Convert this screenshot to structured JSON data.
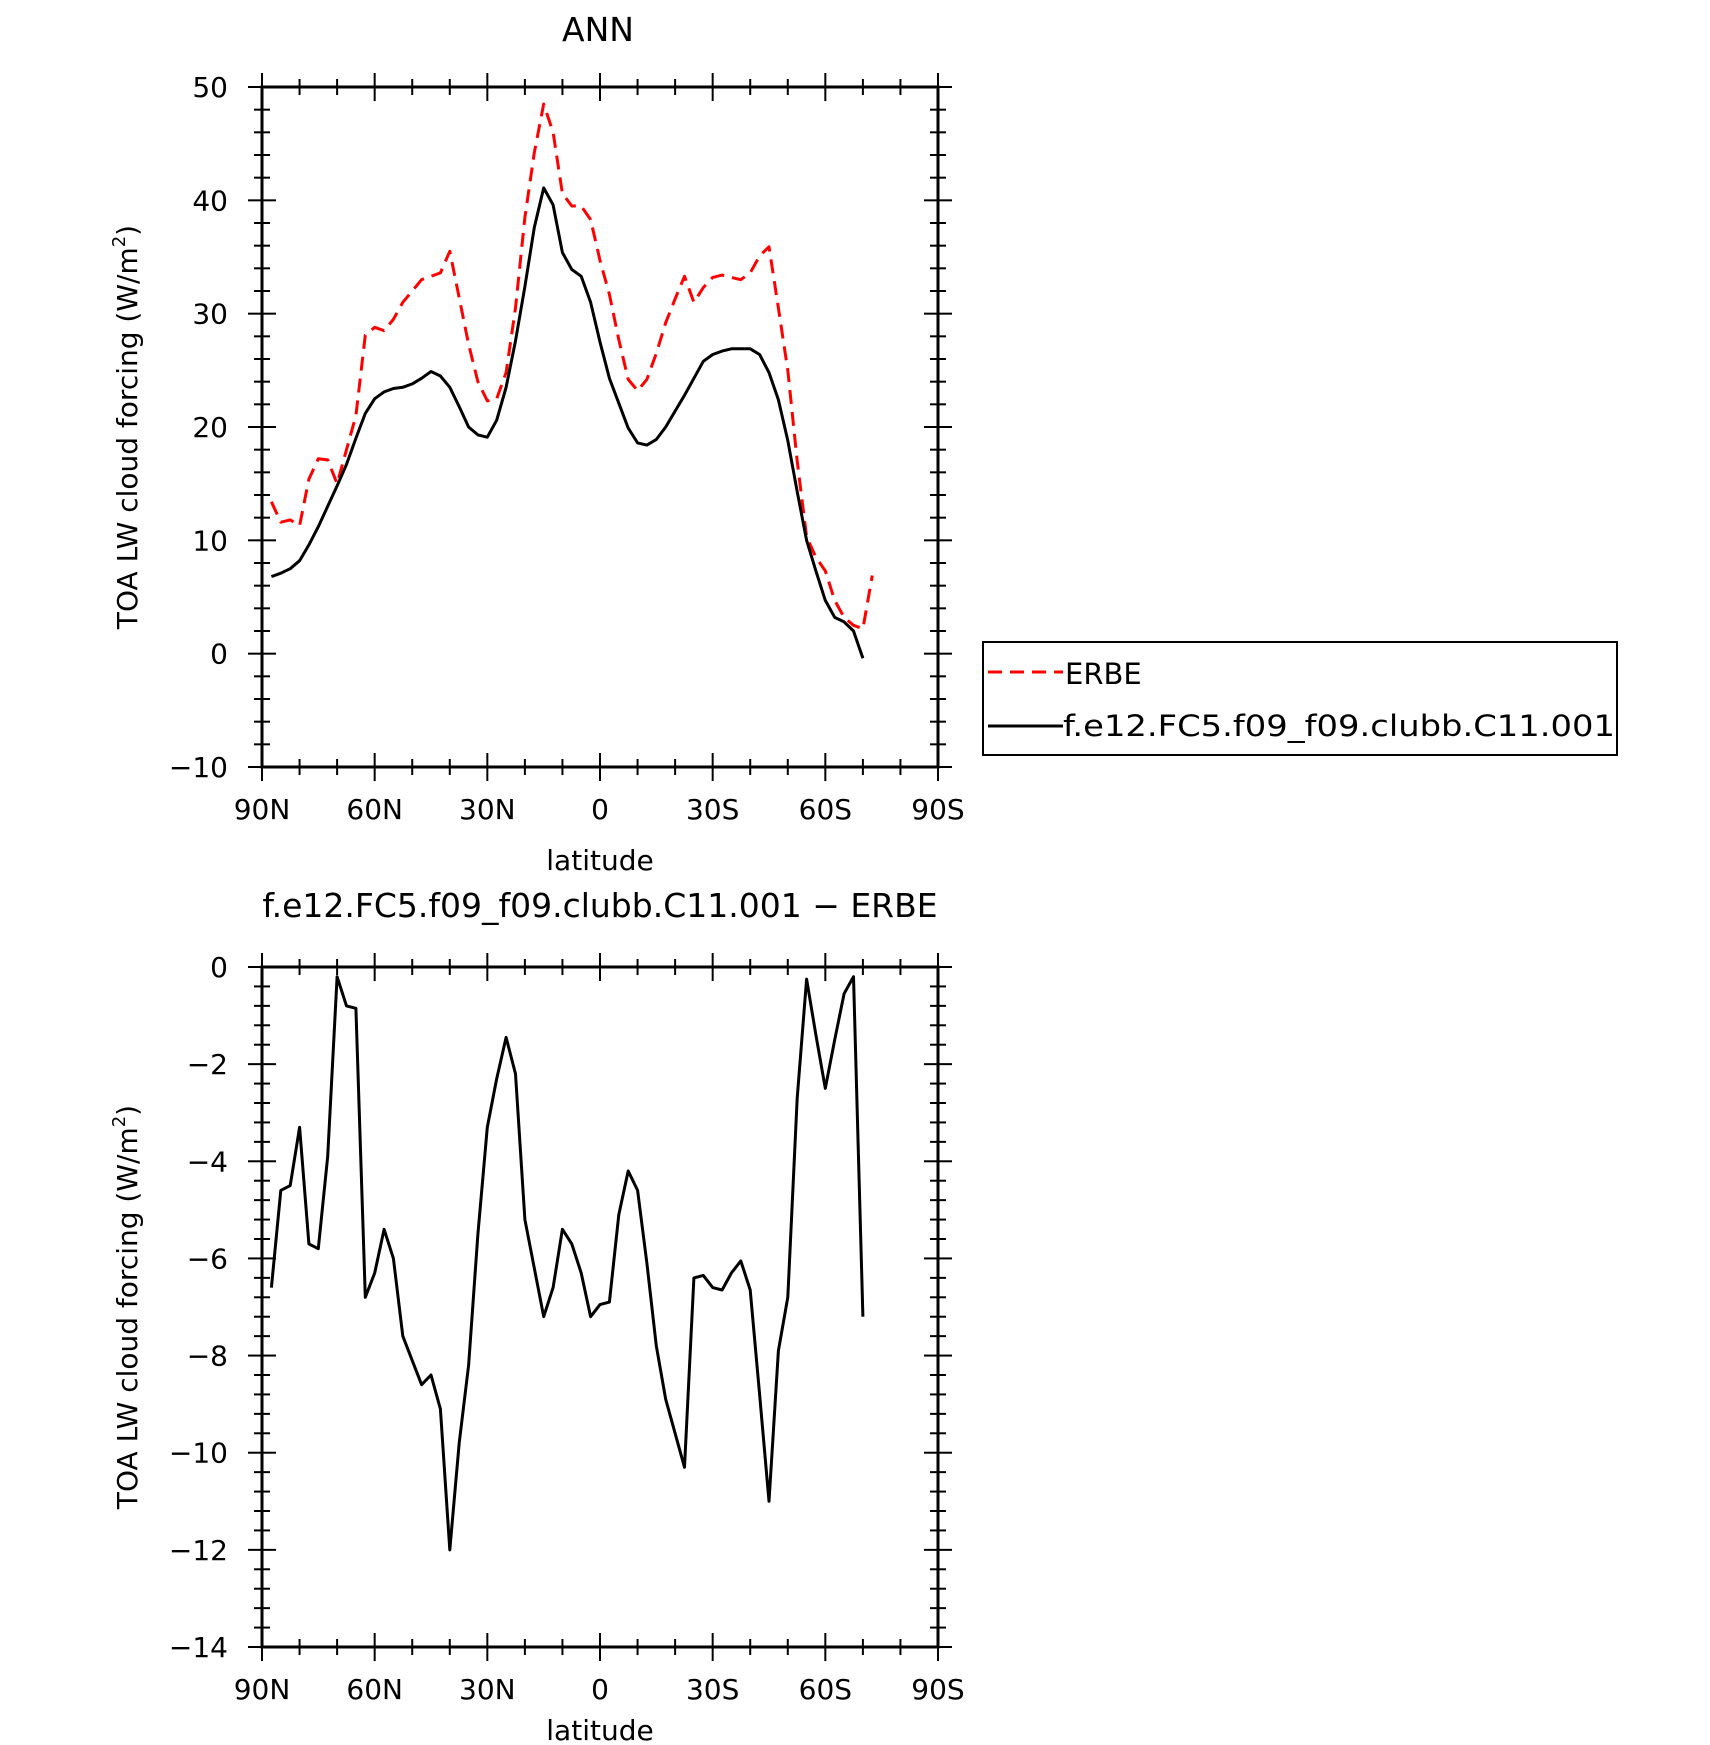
{
  "chart_data": [
    {
      "type": "line",
      "title": "ANN",
      "xlabel": "latitude",
      "ylabel": "TOA LW cloud forcing (W/m",
      "ylabel_sup": "2",
      "ylabel_close": ")",
      "xlim": [
        90,
        -90
      ],
      "ylim": [
        -10,
        50
      ],
      "xticks": [
        {
          "value": 90,
          "label": "90N"
        },
        {
          "value": 60,
          "label": "60N"
        },
        {
          "value": 30,
          "label": "30N"
        },
        {
          "value": 0,
          "label": "0"
        },
        {
          "value": -30,
          "label": "30S"
        },
        {
          "value": -60,
          "label": "60S"
        },
        {
          "value": -90,
          "label": "90S"
        }
      ],
      "yticks": [
        {
          "value": -10,
          "label": "−10"
        },
        {
          "value": 0,
          "label": "0"
        },
        {
          "value": 10,
          "label": "10"
        },
        {
          "value": 20,
          "label": "20"
        },
        {
          "value": 30,
          "label": "30"
        },
        {
          "value": 40,
          "label": "40"
        },
        {
          "value": 50,
          "label": "50"
        }
      ],
      "legend_position": "right",
      "series": [
        {
          "name": "ERBE",
          "color": "#ff0000",
          "style": "dashed",
          "points": [
            [
              87.5,
              13.4
            ],
            [
              85,
              11.6
            ],
            [
              82.5,
              11.8
            ],
            [
              80,
              11.3
            ],
            [
              77.5,
              15.4
            ],
            [
              75,
              17.2
            ],
            [
              72.5,
              17.1
            ],
            [
              70,
              15.0
            ],
            [
              67.5,
              18.0
            ],
            [
              65,
              21.0
            ],
            [
              62.5,
              28.1
            ],
            [
              60,
              28.8
            ],
            [
              57.5,
              28.5
            ],
            [
              55,
              29.5
            ],
            [
              52.5,
              31.0
            ],
            [
              50,
              32.0
            ],
            [
              47.5,
              33.0
            ],
            [
              45,
              33.3
            ],
            [
              42.5,
              33.6
            ],
            [
              40,
              35.5
            ],
            [
              37.5,
              31.4
            ],
            [
              35,
              27.3
            ],
            [
              32.5,
              24.0
            ],
            [
              30,
              22.3
            ],
            [
              27.5,
              22.5
            ],
            [
              25,
              24.8
            ],
            [
              22.5,
              30.5
            ],
            [
              20,
              38.5
            ],
            [
              17.5,
              44.2
            ],
            [
              15,
              48.5
            ],
            [
              12.5,
              46.0
            ],
            [
              10,
              40.6
            ],
            [
              7.5,
              39.5
            ],
            [
              5,
              39.5
            ],
            [
              2.5,
              38.3
            ],
            [
              0,
              34.7
            ],
            [
              -2.5,
              31.7
            ],
            [
              -5,
              27.7
            ],
            [
              -7.5,
              24.2
            ],
            [
              -10,
              23.2
            ],
            [
              -12.5,
              24.2
            ],
            [
              -15,
              26.5
            ],
            [
              -17.5,
              29.2
            ],
            [
              -20,
              31.3
            ],
            [
              -22.5,
              33.3
            ],
            [
              -25,
              31.0
            ],
            [
              -27.5,
              32.3
            ],
            [
              -30,
              33.2
            ],
            [
              -32.5,
              33.4
            ],
            [
              -35,
              33.2
            ],
            [
              -37.5,
              33.0
            ],
            [
              -40,
              33.6
            ],
            [
              -42.5,
              35.1
            ],
            [
              -45,
              35.9
            ],
            [
              -47.5,
              30.5
            ],
            [
              -50,
              25.0
            ],
            [
              -52.5,
              17.0
            ],
            [
              -55,
              10.3
            ],
            [
              -57.5,
              8.5
            ],
            [
              -60,
              7.3
            ],
            [
              -62.5,
              4.7
            ],
            [
              -65,
              3.2
            ],
            [
              -67.5,
              2.5
            ],
            [
              -70,
              2.2
            ],
            [
              -72.5,
              6.9
            ]
          ]
        },
        {
          "name": "f.e12.FC5.f09_f09.clubb.C11.001",
          "color": "#000000",
          "style": "solid",
          "points": [
            [
              87.5,
              6.8
            ],
            [
              85,
              7.1
            ],
            [
              82.5,
              7.5
            ],
            [
              80,
              8.2
            ],
            [
              77.5,
              9.6
            ],
            [
              75,
              11.2
            ],
            [
              72.5,
              13.0
            ],
            [
              70,
              14.8
            ],
            [
              67.5,
              16.7
            ],
            [
              65,
              19.0
            ],
            [
              62.5,
              21.2
            ],
            [
              60,
              22.5
            ],
            [
              57.5,
              23.1
            ],
            [
              55,
              23.4
            ],
            [
              52.5,
              23.5
            ],
            [
              50,
              23.8
            ],
            [
              47.5,
              24.3
            ],
            [
              45,
              24.9
            ],
            [
              42.5,
              24.5
            ],
            [
              40,
              23.5
            ],
            [
              37.5,
              21.8
            ],
            [
              35,
              20.0
            ],
            [
              32.5,
              19.3
            ],
            [
              30,
              19.1
            ],
            [
              27.5,
              20.6
            ],
            [
              25,
              23.5
            ],
            [
              22.5,
              27.6
            ],
            [
              20,
              32.4
            ],
            [
              17.5,
              37.6
            ],
            [
              15,
              41.1
            ],
            [
              12.5,
              39.6
            ],
            [
              10,
              35.4
            ],
            [
              7.5,
              33.9
            ],
            [
              5,
              33.3
            ],
            [
              2.5,
              31.0
            ],
            [
              0,
              27.5
            ],
            [
              -2.5,
              24.3
            ],
            [
              -5,
              22.1
            ],
            [
              -7.5,
              19.9
            ],
            [
              -10,
              18.6
            ],
            [
              -12.5,
              18.4
            ],
            [
              -15,
              18.9
            ],
            [
              -17.5,
              20.0
            ],
            [
              -20,
              21.4
            ],
            [
              -22.5,
              22.8
            ],
            [
              -25,
              24.3
            ],
            [
              -27.5,
              25.8
            ],
            [
              -30,
              26.4
            ],
            [
              -32.5,
              26.7
            ],
            [
              -35,
              26.9
            ],
            [
              -37.5,
              26.9
            ],
            [
              -40,
              26.9
            ],
            [
              -42.5,
              26.4
            ],
            [
              -45,
              24.8
            ],
            [
              -47.5,
              22.4
            ],
            [
              -50,
              18.8
            ],
            [
              -52.5,
              14.3
            ],
            [
              -55,
              10.0
            ],
            [
              -57.5,
              7.3
            ],
            [
              -60,
              4.7
            ],
            [
              -62.5,
              3.2
            ],
            [
              -65,
              2.8
            ],
            [
              -67.5,
              2.0
            ],
            [
              -70,
              -0.4
            ]
          ]
        }
      ]
    },
    {
      "type": "line",
      "title": "f.e12.FC5.f09_f09.clubb.C11.001 − ERBE",
      "xlabel": "latitude",
      "ylabel": "TOA LW cloud forcing (W/m",
      "ylabel_sup": "2",
      "ylabel_close": ")",
      "xlim": [
        90,
        -90
      ],
      "ylim": [
        -14,
        0
      ],
      "xticks": [
        {
          "value": 90,
          "label": "90N"
        },
        {
          "value": 60,
          "label": "60N"
        },
        {
          "value": 30,
          "label": "30N"
        },
        {
          "value": 0,
          "label": "0"
        },
        {
          "value": -30,
          "label": "30S"
        },
        {
          "value": -60,
          "label": "60S"
        },
        {
          "value": -90,
          "label": "90S"
        }
      ],
      "yticks": [
        {
          "value": -14,
          "label": "−14"
        },
        {
          "value": -12,
          "label": "−12"
        },
        {
          "value": -10,
          "label": "−10"
        },
        {
          "value": -8,
          "label": "−8"
        },
        {
          "value": -6,
          "label": "−6"
        },
        {
          "value": -4,
          "label": "−4"
        },
        {
          "value": -2,
          "label": "−2"
        },
        {
          "value": 0,
          "label": "0"
        }
      ],
      "series": [
        {
          "color": "#000000",
          "style": "solid",
          "points": [
            [
              87.5,
              -6.6
            ],
            [
              85,
              -4.6
            ],
            [
              82.5,
              -4.5
            ],
            [
              80,
              -3.3
            ],
            [
              77.5,
              -5.7
            ],
            [
              75,
              -5.8
            ],
            [
              72.5,
              -3.9
            ],
            [
              70,
              -0.2
            ],
            [
              67.5,
              -0.8
            ],
            [
              65,
              -0.85
            ],
            [
              62.5,
              -6.8
            ],
            [
              60,
              -6.3
            ],
            [
              57.5,
              -5.4
            ],
            [
              55,
              -6.0
            ],
            [
              52.5,
              -7.6
            ],
            [
              50,
              -8.1
            ],
            [
              47.5,
              -8.6
            ],
            [
              45,
              -8.4
            ],
            [
              42.5,
              -9.1
            ],
            [
              40,
              -12.0
            ],
            [
              37.5,
              -9.8
            ],
            [
              35,
              -8.2
            ],
            [
              32.5,
              -5.5
            ],
            [
              30,
              -3.3
            ],
            [
              27.5,
              -2.3
            ],
            [
              25,
              -1.45
            ],
            [
              22.5,
              -2.2
            ],
            [
              20,
              -5.2
            ],
            [
              17.5,
              -6.2
            ],
            [
              15,
              -7.2
            ],
            [
              12.5,
              -6.6
            ],
            [
              10,
              -5.4
            ],
            [
              7.5,
              -5.7
            ],
            [
              5,
              -6.3
            ],
            [
              2.5,
              -7.2
            ],
            [
              0,
              -6.95
            ],
            [
              -2.5,
              -6.9
            ],
            [
              -5,
              -5.1
            ],
            [
              -7.5,
              -4.2
            ],
            [
              -10,
              -4.6
            ],
            [
              -12.5,
              -6.1
            ],
            [
              -15,
              -7.8
            ],
            [
              -17.5,
              -8.9
            ],
            [
              -20,
              -9.6
            ],
            [
              -22.5,
              -10.3
            ],
            [
              -25,
              -6.4
            ],
            [
              -27.5,
              -6.35
            ],
            [
              -30,
              -6.6
            ],
            [
              -32.5,
              -6.65
            ],
            [
              -35,
              -6.3
            ],
            [
              -37.5,
              -6.05
            ],
            [
              -40,
              -6.65
            ],
            [
              -42.5,
              -8.8
            ],
            [
              -45,
              -11.0
            ],
            [
              -47.5,
              -7.9
            ],
            [
              -50,
              -6.8
            ],
            [
              -52.5,
              -2.7
            ],
            [
              -55,
              -0.25
            ],
            [
              -57.5,
              -1.4
            ],
            [
              -60,
              -2.5
            ],
            [
              -62.5,
              -1.5
            ],
            [
              -65,
              -0.55
            ],
            [
              -67.5,
              -0.2
            ],
            [
              -70,
              -7.2
            ]
          ]
        }
      ]
    }
  ]
}
